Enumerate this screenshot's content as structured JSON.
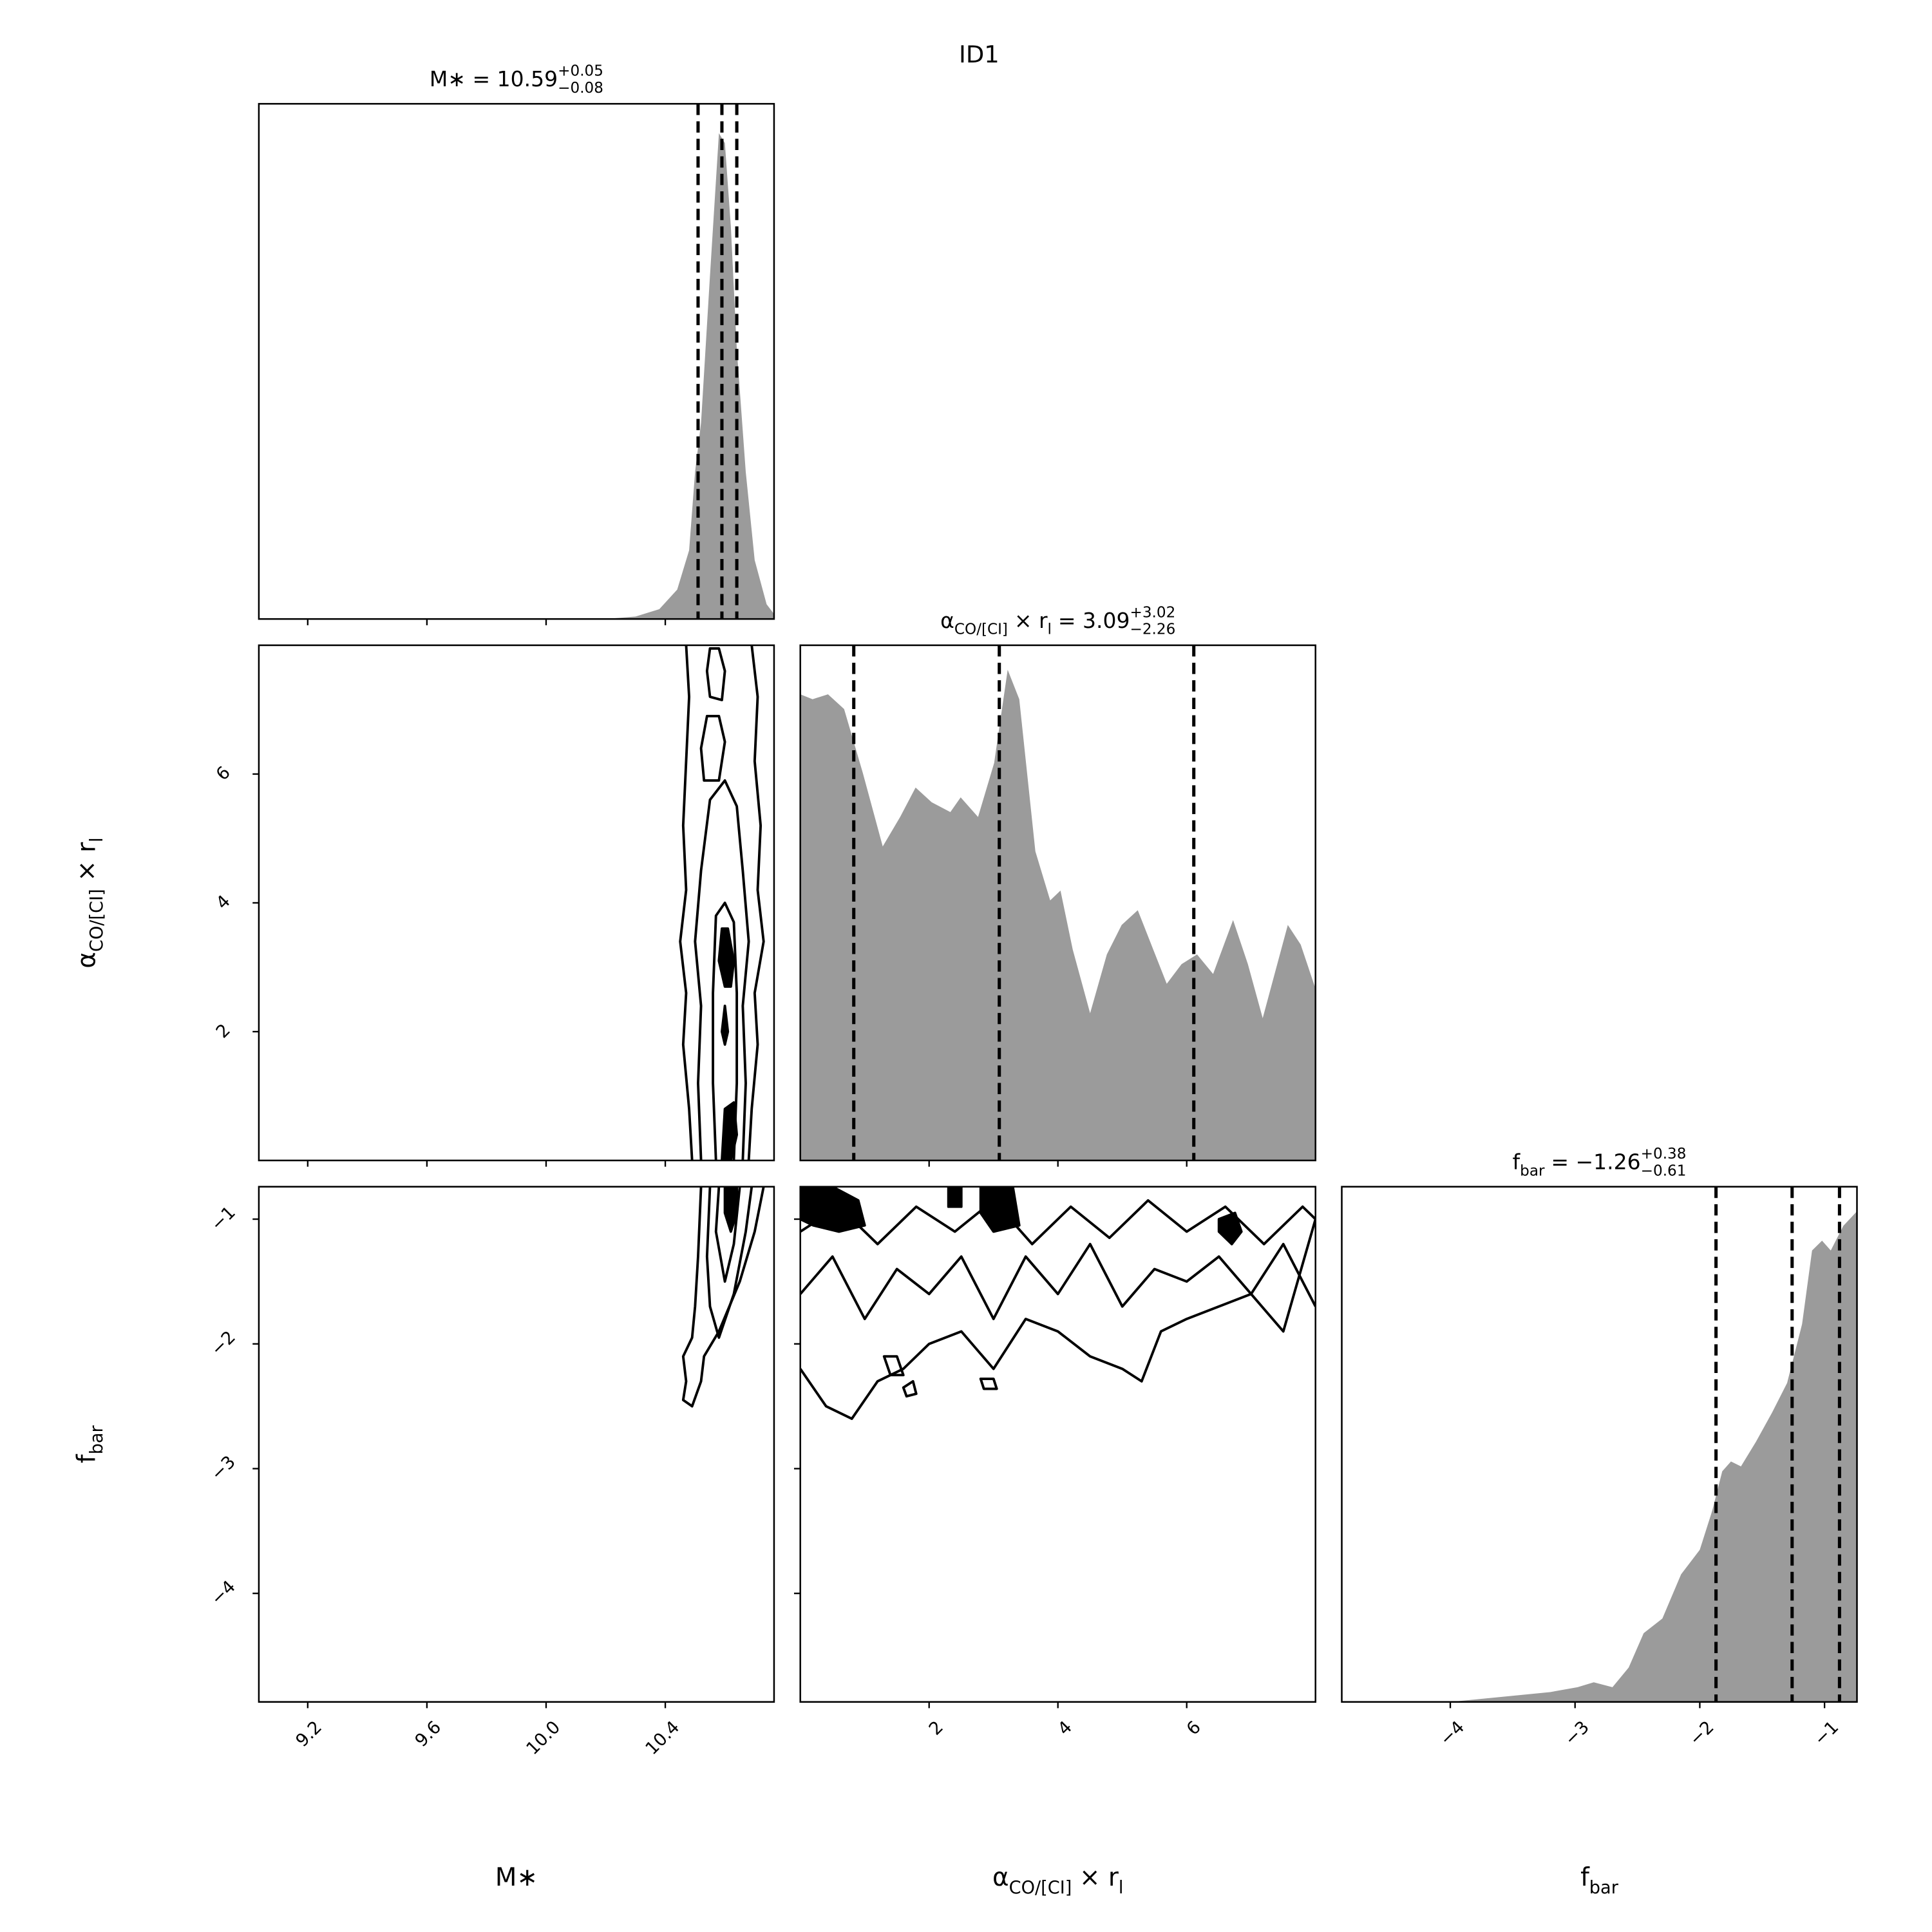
{
  "chart_data": {
    "type": "corner",
    "title": "ID1",
    "hist_color": "#9b9b9b",
    "params": [
      {
        "label": [
          {
            "text": "M∗"
          }
        ],
        "title": [
          {
            "text": "M∗ = 10.59"
          },
          {
            "text": "+0.05",
            "pos": "sup"
          },
          {
            "text": "−0.08",
            "pos": "sub"
          }
        ],
        "lim": [
          9.036,
          10.765
        ],
        "ticks": [
          9.2,
          9.6,
          {
            "value": 10,
            "label": "10.0"
          },
          10.4
        ],
        "quantiles": [
          10.51,
          10.59,
          10.64
        ],
        "hist": {
          "x": [
            10.2,
            10.3,
            10.38,
            10.44,
            10.48,
            10.5,
            10.52,
            10.55,
            10.58,
            10.6,
            10.62,
            10.64,
            10.67,
            10.7,
            10.74,
            10.765
          ],
          "values": [
            0,
            0.005,
            0.02,
            0.06,
            0.14,
            0.3,
            0.4,
            0.7,
            0.99,
            0.97,
            0.8,
            0.55,
            0.3,
            0.12,
            0.03,
            0.01
          ],
          "ylim": [
            0,
            1.05
          ]
        }
      },
      {
        "label": [
          {
            "text": "α"
          },
          {
            "text": "CO/[CI]",
            "pos": "sub"
          },
          {
            "text": "× r"
          },
          {
            "text": "l",
            "pos": "sub"
          }
        ],
        "title": [
          {
            "text": "α"
          },
          {
            "text": "CO/[CI]",
            "pos": "sub"
          },
          {
            "text": "× r"
          },
          {
            "text": "l",
            "pos": "sub"
          },
          {
            "text": "= 3.09"
          },
          {
            "text": "+3.02",
            "pos": "sup"
          },
          {
            "text": "−2.26",
            "pos": "sub"
          }
        ],
        "lim": [
          0,
          8
        ],
        "ticks": [
          2,
          4,
          6
        ],
        "quantiles": [
          0.83,
          3.09,
          6.11
        ],
        "hist": {
          "x": [
            0,
            0.19,
            0.43,
            0.68,
            0.97,
            1.28,
            1.55,
            1.79,
            2.04,
            2.33,
            2.49,
            2.76,
            3.01,
            3.22,
            3.4,
            3.65,
            3.88,
            4.04,
            4.23,
            4.5,
            4.76,
            4.99,
            5.24,
            5.48,
            5.69,
            5.92,
            6.16,
            6.41,
            6.72,
            6.95,
            7.18,
            7.57,
            7.77,
            8
          ],
          "values": [
            0.95,
            0.94,
            0.95,
            0.92,
            0.79,
            0.64,
            0.7,
            0.76,
            0.73,
            0.71,
            0.74,
            0.7,
            0.81,
            1.0,
            0.94,
            0.63,
            0.53,
            0.55,
            0.43,
            0.3,
            0.42,
            0.48,
            0.51,
            0.43,
            0.36,
            0.4,
            0.42,
            0.38,
            0.49,
            0.4,
            0.29,
            0.48,
            0.44,
            0.35
          ],
          "ylim": [
            0,
            1.05
          ]
        }
      },
      {
        "label": [
          {
            "text": "f"
          },
          {
            "text": "bar",
            "pos": "sub"
          }
        ],
        "title": [
          {
            "text": "f"
          },
          {
            "text": "bar",
            "pos": "sub"
          },
          {
            "text": "= −1.26"
          },
          {
            "text": "+0.38",
            "pos": "sup"
          },
          {
            "text": "−0.61",
            "pos": "sub"
          }
        ],
        "lim": [
          -4.87,
          -0.74
        ],
        "ticks": [
          {
            "value": -4,
            "label": "−4"
          },
          {
            "value": -3,
            "label": "−3"
          },
          {
            "value": -2,
            "label": "−2"
          },
          {
            "value": -1,
            "label": "−1"
          }
        ],
        "quantiles": [
          -1.87,
          -1.26,
          -0.88
        ],
        "hist": {
          "x": [
            -4.87,
            -4.0,
            -3.6,
            -3.2,
            -2.98,
            -2.85,
            -2.7,
            -2.57,
            -2.45,
            -2.3,
            -2.15,
            -2.0,
            -1.9,
            -1.82,
            -1.75,
            -1.67,
            -1.55,
            -1.42,
            -1.3,
            -1.18,
            -1.1,
            -1.02,
            -0.95,
            -0.85,
            -0.74
          ],
          "values": [
            0,
            0,
            0.01,
            0.02,
            0.03,
            0.04,
            0.03,
            0.07,
            0.14,
            0.17,
            0.26,
            0.31,
            0.39,
            0.47,
            0.49,
            0.48,
            0.53,
            0.59,
            0.65,
            0.77,
            0.92,
            0.94,
            0.92,
            0.97,
            1.0
          ],
          "ylim": [
            0,
            1.05
          ]
        }
      }
    ],
    "contours": [
      [
        [
          {
            "x": [
              10.49,
              10.48,
              10.46,
              10.47,
              10.45,
              10.47,
              10.46,
              10.47,
              10.48,
              10.47
            ],
            "y": [
              0,
              0.8,
              1.8,
              2.6,
              3.4,
              4.2,
              5.2,
              6.2,
              7.2,
              8.0
            ],
            "closed": false,
            "filled": false
          },
          {
            "x": [
              10.68,
              10.69,
              10.71,
              10.7,
              10.73,
              10.71,
              10.72,
              10.7,
              10.71,
              10.69
            ],
            "y": [
              0,
              0.8,
              1.8,
              2.6,
              3.4,
              4.2,
              5.2,
              6.2,
              7.2,
              8.0
            ],
            "closed": false,
            "filled": false
          },
          {
            "x": [
              10.52,
              10.51,
              10.52,
              10.5,
              10.52,
              10.55,
              10.6,
              10.64,
              10.66,
              10.68,
              10.66,
              10.67,
              10.66
            ],
            "y": [
              0,
              1.2,
              2.4,
              3.4,
              4.5,
              5.6,
              5.9,
              5.5,
              4.5,
              3.4,
              2.4,
              1.2,
              0
            ],
            "closed": false,
            "filled": false
          },
          {
            "x": [
              10.57,
              10.56,
              10.56,
              10.57,
              10.6,
              10.63,
              10.64,
              10.64,
              10.63
            ],
            "y": [
              0,
              1.2,
              2.6,
              3.8,
              4.0,
              3.7,
              2.6,
              1.2,
              0
            ],
            "closed": false,
            "filled": false
          },
          {
            "x": [
              10.54,
              10.55,
              10.58,
              10.6,
              10.59,
              10.55
            ],
            "y": [
              7.6,
              7.95,
              7.95,
              7.6,
              7.15,
              7.2
            ],
            "closed": true,
            "filled": false
          },
          {
            "x": [
              10.52,
              10.54,
              10.58,
              10.6,
              10.58,
              10.53
            ],
            "y": [
              6.4,
              6.9,
              6.9,
              6.5,
              5.9,
              5.9
            ],
            "closed": true,
            "filled": false
          },
          {
            "x": [
              10.58,
              10.59,
              10.61,
              10.63,
              10.62,
              10.6
            ],
            "y": [
              3.1,
              3.6,
              3.6,
              3.1,
              2.7,
              2.7
            ],
            "closed": true,
            "filled": true
          },
          {
            "x": [
              10.59,
              10.6,
              10.61,
              10.6
            ],
            "y": [
              2.0,
              2.4,
              2.0,
              1.8
            ],
            "closed": true,
            "filled": true
          },
          {
            "x": [
              10.59,
              10.6,
              10.63,
              10.64,
              10.62
            ],
            "y": [
              0,
              0.8,
              0.9,
              0.4,
              0
            ],
            "closed": true,
            "filled": true
          }
        ]
      ],
      [
        [
          {
            "x": [
              10.52,
              10.51,
              10.5,
              10.49,
              10.46,
              10.47,
              10.46,
              10.49,
              10.52,
              10.53,
              10.58,
              10.65,
              10.7,
              10.73
            ],
            "y": [
              -0.74,
              -1.3,
              -1.7,
              -1.95,
              -2.1,
              -2.3,
              -2.45,
              -2.5,
              -2.3,
              -2.1,
              -1.9,
              -1.5,
              -1.1,
              -0.74
            ],
            "closed": false,
            "filled": false
          },
          {
            "x": [
              10.55,
              10.54,
              10.55,
              10.58,
              10.63,
              10.67,
              10.69
            ],
            "y": [
              -0.74,
              -1.3,
              -1.7,
              -1.95,
              -1.6,
              -1.1,
              -0.74
            ],
            "closed": false,
            "filled": false
          },
          {
            "x": [
              10.58,
              10.57,
              10.6,
              10.63,
              10.65
            ],
            "y": [
              -0.74,
              -1.1,
              -1.5,
              -1.2,
              -0.74
            ],
            "closed": false,
            "filled": false
          },
          {
            "x": [
              10.6,
              10.6,
              10.62,
              10.64,
              10.64
            ],
            "y": [
              -0.74,
              -0.95,
              -1.1,
              -0.95,
              -0.74
            ],
            "closed": true,
            "filled": true
          }
        ],
        [
          {
            "x": [
              0,
              0.4,
              0.8,
              1.2,
              1.6,
              2.0,
              2.5,
              3.0,
              3.5,
              4.0,
              4.5,
              5.0,
              5.3,
              5.6,
              6.0,
              6.5,
              7.0,
              7.5,
              8.0
            ],
            "y": [
              -2.2,
              -2.5,
              -2.6,
              -2.3,
              -2.2,
              -2.0,
              -1.9,
              -2.2,
              -1.8,
              -1.9,
              -2.1,
              -2.2,
              -2.3,
              -1.9,
              -1.8,
              -1.7,
              -1.6,
              -1.9,
              -1.0
            ],
            "closed": false,
            "filled": false
          },
          {
            "x": [
              0,
              0.5,
              1,
              1.5,
              2,
              2.5,
              3,
              3.5,
              4,
              4.5,
              5,
              5.5,
              6,
              6.5,
              7,
              7.5,
              8
            ],
            "y": [
              -1.6,
              -1.3,
              -1.8,
              -1.4,
              -1.6,
              -1.3,
              -1.8,
              -1.3,
              -1.6,
              -1.2,
              -1.7,
              -1.4,
              -1.5,
              -1.3,
              -1.6,
              -1.2,
              -1.7
            ],
            "closed": false,
            "filled": false
          },
          {
            "x": [
              0,
              0.6,
              1.2,
              1.8,
              2.4,
              3.0,
              3.6,
              4.2,
              4.8,
              5.4,
              6.0,
              6.6,
              7.2,
              7.8,
              8
            ],
            "y": [
              -1.1,
              -0.9,
              -1.2,
              -0.9,
              -1.1,
              -0.85,
              -1.2,
              -0.9,
              -1.15,
              -0.85,
              -1.1,
              -0.9,
              -1.2,
              -0.9,
              -1.0
            ],
            "closed": false,
            "filled": false
          },
          {
            "x": [
              0,
              0.5,
              0.9,
              1.0,
              0.6,
              0.2,
              0
            ],
            "y": [
              -0.74,
              -0.74,
              -0.85,
              -1.05,
              -1.1,
              -1.05,
              -1.0
            ],
            "closed": true,
            "filled": true
          },
          {
            "x": [
              2.8,
              3.3,
              3.4,
              3.0,
              2.8
            ],
            "y": [
              -0.74,
              -0.74,
              -1.05,
              -1.1,
              -0.95
            ],
            "closed": true,
            "filled": true
          },
          {
            "x": [
              6.5,
              6.75,
              6.85,
              6.7,
              6.5
            ],
            "y": [
              -1.0,
              -0.95,
              -1.1,
              -1.2,
              -1.1
            ],
            "closed": true,
            "filled": true
          },
          {
            "x": [
              2.3,
              2.5,
              2.5,
              2.3
            ],
            "y": [
              -0.74,
              -0.74,
              -0.9,
              -0.9
            ],
            "closed": true,
            "filled": true
          },
          {
            "x": [
              1.3,
              1.5,
              1.6,
              1.4
            ],
            "y": [
              -2.1,
              -2.1,
              -2.25,
              -2.25
            ],
            "closed": true,
            "filled": false
          },
          {
            "x": [
              1.6,
              1.75,
              1.8,
              1.65
            ],
            "y": [
              -2.35,
              -2.3,
              -2.4,
              -2.42
            ],
            "closed": true,
            "filled": false
          },
          {
            "x": [
              2.8,
              3.0,
              3.05,
              2.85
            ],
            "y": [
              -2.28,
              -2.28,
              -2.36,
              -2.36
            ],
            "closed": true,
            "filled": false
          }
        ]
      ]
    ]
  }
}
